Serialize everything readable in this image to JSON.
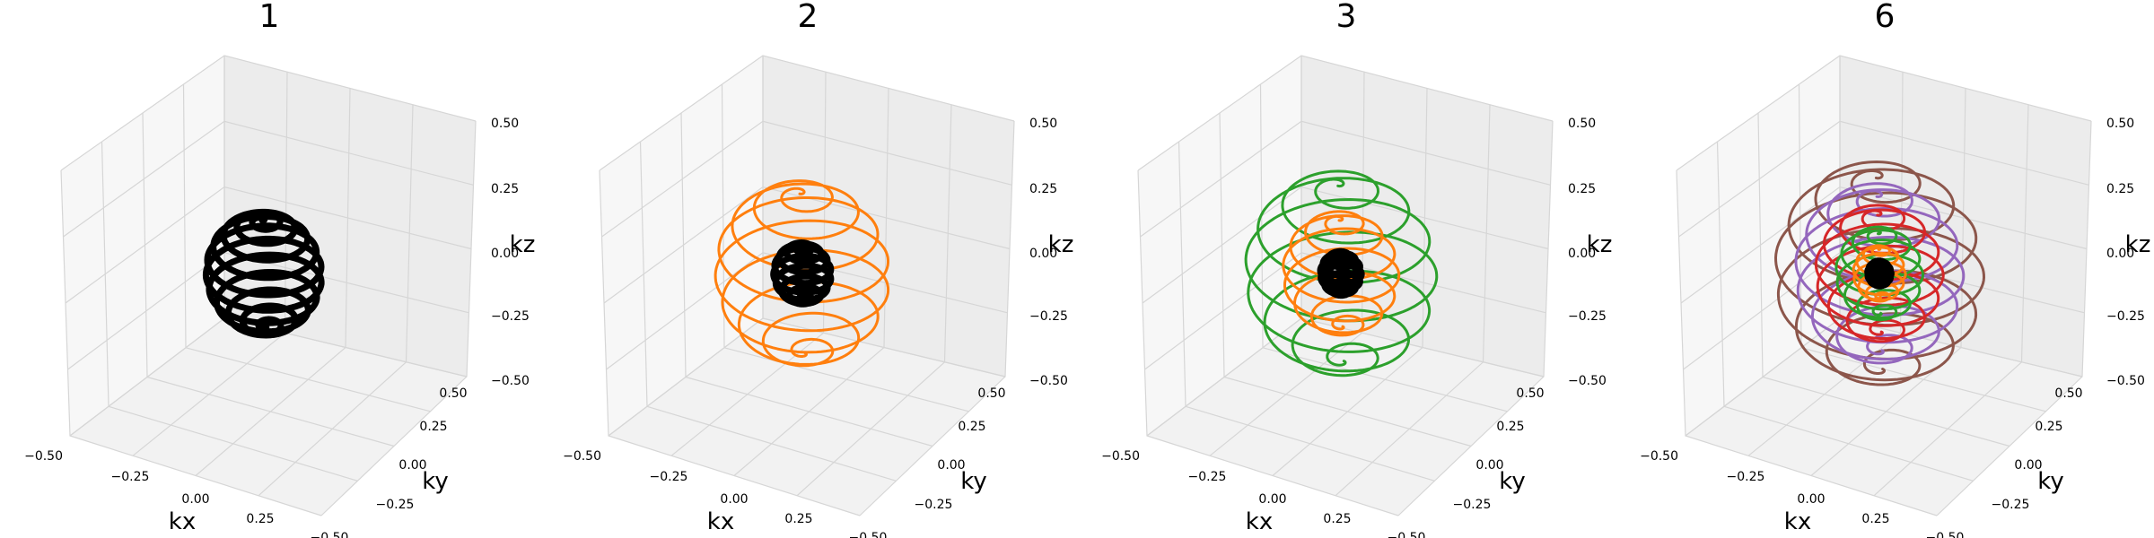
{
  "chart_data": [
    {
      "type": "3d-line",
      "title": "1",
      "xlabel": "kx",
      "ylabel": "ky",
      "zlabel": "kz",
      "xlim": [
        -0.5,
        0.5
      ],
      "ylim": [
        -0.5,
        0.5
      ],
      "zlim": [
        -0.5,
        0.5
      ],
      "x_ticks": [
        "−0.50",
        "−0.25",
        "0.00",
        "0.25",
        "−0.50"
      ],
      "y_ticks": [
        "−0.25",
        "0.00",
        "0.25",
        "0.50"
      ],
      "z_ticks": [
        "−0.50",
        "−0.25",
        "0.00",
        "0.25",
        "0.50"
      ],
      "grid": true,
      "series": [
        {
          "radius": 0.2,
          "turns": 11,
          "color": "#000000",
          "linewidth": 7
        }
      ]
    },
    {
      "type": "3d-line",
      "title": "2",
      "xlabel": "kx",
      "ylabel": "ky",
      "zlabel": "kz",
      "xlim": [
        -0.5,
        0.5
      ],
      "ylim": [
        -0.5,
        0.5
      ],
      "zlim": [
        -0.5,
        0.5
      ],
      "x_ticks": [
        "−0.50",
        "−0.25",
        "0.00",
        "0.25",
        "−0.50"
      ],
      "y_ticks": [
        "−0.25",
        "0.00",
        "0.25",
        "0.50"
      ],
      "z_ticks": [
        "−0.50",
        "−0.25",
        "0.00",
        "0.25",
        "0.50"
      ],
      "grid": true,
      "series": [
        {
          "radius": 0.3,
          "turns": 9,
          "color": "#ff7f0e",
          "linewidth": 3
        },
        {
          "radius": 0.1,
          "turns": 9,
          "color": "#000000",
          "linewidth": 7
        }
      ]
    },
    {
      "type": "3d-line",
      "title": "3",
      "xlabel": "kx",
      "ylabel": "ky",
      "zlabel": "kz",
      "xlim": [
        -0.5,
        0.5
      ],
      "ylim": [
        -0.5,
        0.5
      ],
      "zlim": [
        -0.5,
        0.5
      ],
      "x_ticks": [
        "−0.50",
        "−0.25",
        "0.00",
        "0.25",
        "−0.50"
      ],
      "y_ticks": [
        "−0.25",
        "0.00",
        "0.25",
        "0.50"
      ],
      "z_ticks": [
        "−0.50",
        "−0.25",
        "0.00",
        "0.25",
        "0.50"
      ],
      "grid": true,
      "series": [
        {
          "radius": 0.33,
          "turns": 8,
          "color": "#2ca02c",
          "linewidth": 3
        },
        {
          "radius": 0.2,
          "turns": 8,
          "color": "#ff7f0e",
          "linewidth": 3
        },
        {
          "radius": 0.07,
          "turns": 8,
          "color": "#000000",
          "linewidth": 8
        }
      ]
    },
    {
      "type": "3d-line",
      "title": "6",
      "xlabel": "kx",
      "ylabel": "ky",
      "zlabel": "kz",
      "xlim": [
        -0.5,
        0.5
      ],
      "ylim": [
        -0.5,
        0.5
      ],
      "zlim": [
        -0.5,
        0.5
      ],
      "x_ticks": [
        "−0.50",
        "−0.25",
        "0.00",
        "0.25",
        "−0.50"
      ],
      "y_ticks": [
        "−0.25",
        "0.00",
        "0.25",
        "0.50"
      ],
      "z_ticks": [
        "−0.50",
        "−0.25",
        "0.00",
        "0.25",
        "0.50"
      ],
      "grid": true,
      "series": [
        {
          "radius": 0.36,
          "turns": 8,
          "color": "#8c564b",
          "linewidth": 3
        },
        {
          "radius": 0.29,
          "turns": 8,
          "color": "#9467bd",
          "linewidth": 3
        },
        {
          "radius": 0.22,
          "turns": 8,
          "color": "#d62728",
          "linewidth": 3
        },
        {
          "radius": 0.15,
          "turns": 8,
          "color": "#2ca02c",
          "linewidth": 3
        },
        {
          "radius": 0.09,
          "turns": 8,
          "color": "#ff7f0e",
          "linewidth": 3
        },
        {
          "radius": 0.04,
          "turns": 8,
          "color": "#000000",
          "linewidth": 8
        }
      ]
    }
  ]
}
